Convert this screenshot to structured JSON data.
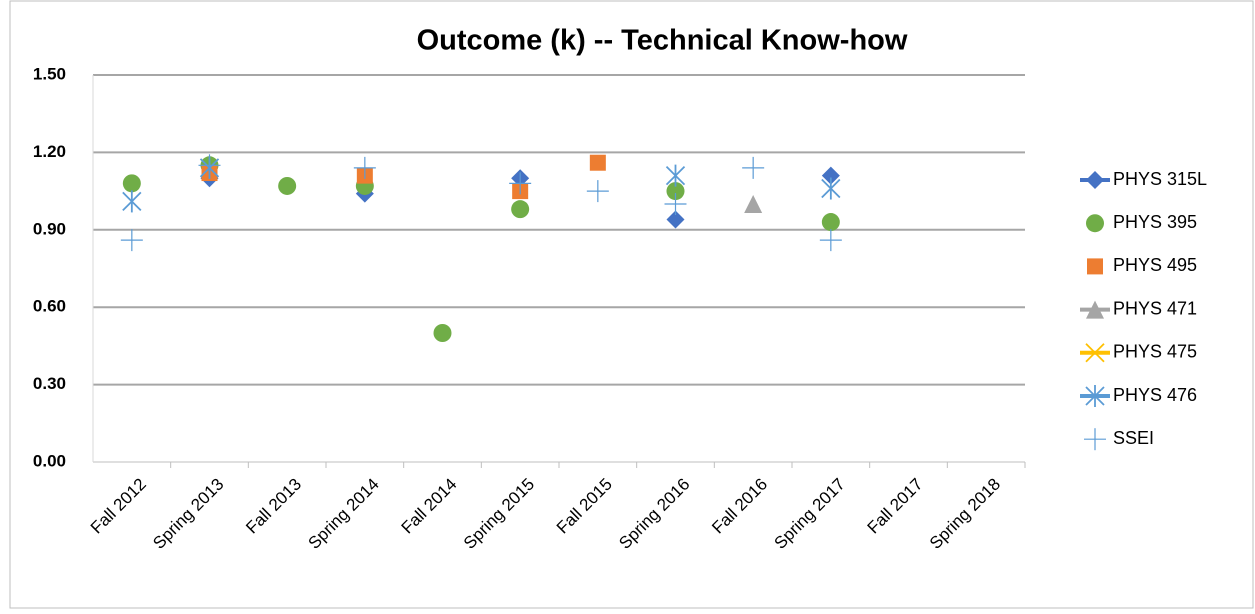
{
  "chart_data": {
    "type": "scatter",
    "title": "Outcome (k) -- Technical Know-how",
    "categories": [
      "Fall 2012",
      "Spring 2013",
      "Fall 2013",
      "Spring 2014",
      "Fall 2014",
      "Spring 2015",
      "Fall 2015",
      "Spring 2016",
      "Fall 2016",
      "Spring 2017",
      "Fall 2017",
      "Spring 2018"
    ],
    "ylim": [
      0,
      1.5
    ],
    "yticks": [
      {
        "value": 0,
        "label": "0.00"
      },
      {
        "value": 0.3,
        "label": "0.30"
      },
      {
        "value": 0.6,
        "label": "0.60"
      },
      {
        "value": 0.9,
        "label": "0.90"
      },
      {
        "value": 1.2,
        "label": "1.20"
      },
      {
        "value": 1.5,
        "label": "1.50"
      }
    ],
    "grid": true,
    "legend": "right",
    "series": [
      {
        "name": "PHYS 315L",
        "color": "#4472c4",
        "marker": "diamond",
        "line": true,
        "values": [
          null,
          1.1,
          null,
          1.04,
          null,
          1.1,
          null,
          0.94,
          null,
          1.11,
          null,
          null
        ]
      },
      {
        "name": "PHYS 395",
        "color": "#70ad47",
        "marker": "circle",
        "line": false,
        "values": [
          1.08,
          1.15,
          1.07,
          1.07,
          0.5,
          0.98,
          null,
          1.05,
          null,
          0.93,
          null,
          null
        ]
      },
      {
        "name": "PHYS 495",
        "color": "#ed7d31",
        "marker": "square",
        "line": false,
        "values": [
          null,
          1.12,
          null,
          1.11,
          null,
          1.05,
          1.16,
          null,
          null,
          null,
          null,
          null
        ]
      },
      {
        "name": "PHYS 471",
        "color": "#a5a5a5",
        "marker": "triangle",
        "line": true,
        "values": [
          null,
          null,
          null,
          null,
          null,
          null,
          null,
          null,
          1.0,
          null,
          null,
          null
        ]
      },
      {
        "name": "PHYS 475",
        "color": "#ffc000",
        "marker": "x",
        "line": true,
        "values": [
          null,
          null,
          null,
          null,
          null,
          null,
          null,
          null,
          null,
          null,
          null,
          null
        ]
      },
      {
        "name": "PHYS 476",
        "color": "#5b9bd5",
        "marker": "asterisk",
        "line": true,
        "values": [
          1.01,
          1.14,
          null,
          null,
          null,
          null,
          null,
          1.11,
          null,
          1.06,
          null,
          null
        ]
      },
      {
        "name": "SSEI",
        "color": "#5b9bd5",
        "marker": "plus",
        "line": false,
        "values": [
          0.86,
          1.15,
          null,
          1.14,
          null,
          1.08,
          1.05,
          1.0,
          1.14,
          0.86,
          null,
          null
        ]
      }
    ]
  }
}
